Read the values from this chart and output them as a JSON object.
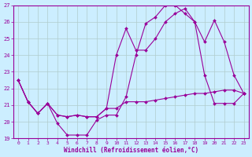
{
  "xlabel": "Windchill (Refroidissement éolien,°C)",
  "bg_color": "#cceeff",
  "line_color": "#990099",
  "grid_color": "#aaddcc",
  "xlim": [
    -0.5,
    23.5
  ],
  "ylim": [
    19,
    27
  ],
  "yticks": [
    19,
    20,
    21,
    22,
    23,
    24,
    25,
    26,
    27
  ],
  "xticks": [
    0,
    1,
    2,
    3,
    4,
    5,
    6,
    7,
    8,
    9,
    10,
    11,
    12,
    13,
    14,
    15,
    16,
    17,
    18,
    19,
    20,
    21,
    22,
    23
  ],
  "line1_x": [
    0,
    1,
    2,
    3,
    4,
    5,
    6,
    7,
    8,
    9,
    10,
    11,
    12,
    13,
    14,
    15,
    16,
    17,
    18,
    19,
    20,
    21,
    22,
    23
  ],
  "line1_y": [
    22.5,
    21.2,
    20.5,
    21.1,
    19.9,
    19.2,
    19.2,
    19.2,
    20.1,
    20.4,
    20.4,
    21.5,
    24.0,
    25.9,
    26.3,
    27.0,
    27.0,
    26.5,
    26.0,
    24.8,
    26.1,
    24.8,
    22.8,
    21.7
  ],
  "line2_x": [
    0,
    1,
    2,
    3,
    4,
    5,
    6,
    7,
    8,
    9,
    10,
    11,
    12,
    13,
    14,
    15,
    16,
    17,
    18,
    19,
    20,
    21,
    22,
    23
  ],
  "line2_y": [
    22.5,
    21.2,
    20.5,
    21.1,
    20.4,
    20.3,
    20.4,
    20.3,
    20.3,
    20.8,
    24.0,
    25.6,
    24.3,
    24.3,
    25.0,
    26.0,
    26.5,
    26.8,
    26.0,
    22.8,
    21.1,
    21.1,
    21.1,
    21.7
  ],
  "line3_x": [
    0,
    1,
    2,
    3,
    4,
    5,
    6,
    7,
    8,
    9,
    10,
    11,
    12,
    13,
    14,
    15,
    16,
    17,
    18,
    19,
    20,
    21,
    22,
    23
  ],
  "line3_y": [
    22.5,
    21.2,
    20.5,
    21.1,
    20.4,
    20.3,
    20.4,
    20.3,
    20.3,
    20.8,
    20.8,
    21.2,
    21.2,
    21.2,
    21.3,
    21.4,
    21.5,
    21.6,
    21.7,
    21.7,
    21.8,
    21.9,
    21.9,
    21.7
  ]
}
